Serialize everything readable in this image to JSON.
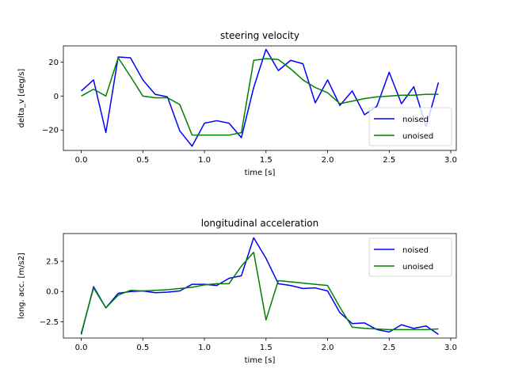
{
  "chart_data": [
    {
      "type": "line",
      "title": "steering velocity",
      "xlabel": "time [s]",
      "ylabel": "delta_v [deg/s]",
      "xlim": [
        -0.145,
        3.045
      ],
      "ylim": [
        -32.0,
        29.5
      ],
      "xticks": [
        0.0,
        0.5,
        1.0,
        1.5,
        2.0,
        2.5,
        3.0
      ],
      "xtick_labels": [
        "0.0",
        "0.5",
        "1.0",
        "1.5",
        "2.0",
        "2.5",
        "3.0"
      ],
      "yticks": [
        -20,
        0,
        20
      ],
      "ytick_labels": [
        "−20",
        "0",
        "20"
      ],
      "grid": false,
      "legend_position": "lower-right",
      "x": [
        0.0,
        0.1,
        0.2,
        0.3,
        0.4,
        0.5,
        0.6,
        0.7,
        0.8,
        0.9,
        1.0,
        1.1,
        1.2,
        1.3,
        1.4,
        1.5,
        1.6,
        1.7,
        1.8,
        1.9,
        2.0,
        2.1,
        2.2,
        2.3,
        2.4,
        2.5,
        2.6,
        2.7,
        2.8,
        2.9
      ],
      "series": [
        {
          "name": "noised",
          "color": "#0000ff",
          "values": [
            3,
            9.5,
            -21.5,
            23,
            22.5,
            9.5,
            1,
            -0.5,
            -20.5,
            -29.5,
            -16,
            -14.5,
            -16,
            -24.5,
            5,
            27.5,
            15,
            21,
            19,
            -4,
            9.5,
            -5.5,
            3,
            -11,
            -6,
            14,
            -4.5,
            5.5,
            -18,
            8
          ]
        },
        {
          "name": "unoised",
          "color": "#008000",
          "values": [
            0,
            4,
            0,
            22.5,
            11.5,
            0,
            -1,
            -1,
            -5,
            -23,
            -23,
            -23,
            -23,
            -21.5,
            21,
            22,
            21.5,
            16,
            9.5,
            5,
            2,
            -4.5,
            -3,
            -1.5,
            -0.5,
            0,
            0.5,
            0.5,
            1,
            1
          ]
        }
      ]
    },
    {
      "type": "line",
      "title": "longitudinal acceleration",
      "xlabel": "time [s]",
      "ylabel": "long. acc. [m/s2]",
      "xlim": [
        -0.145,
        3.045
      ],
      "ylim": [
        -3.85,
        4.8
      ],
      "xticks": [
        0.0,
        0.5,
        1.0,
        1.5,
        2.0,
        2.5,
        3.0
      ],
      "xtick_labels": [
        "0.0",
        "0.5",
        "1.0",
        "1.5",
        "2.0",
        "2.5",
        "3.0"
      ],
      "yticks": [
        -2.5,
        0.0,
        2.5
      ],
      "ytick_labels": [
        "−2.5",
        "0.0",
        "2.5"
      ],
      "grid": false,
      "legend_position": "upper-right",
      "x": [
        0.0,
        0.1,
        0.2,
        0.3,
        0.4,
        0.5,
        0.6,
        0.7,
        0.8,
        0.9,
        1.0,
        1.1,
        1.2,
        1.3,
        1.4,
        1.5,
        1.6,
        1.7,
        1.8,
        1.9,
        2.0,
        2.1,
        2.2,
        2.3,
        2.4,
        2.5,
        2.6,
        2.7,
        2.8,
        2.9
      ],
      "series": [
        {
          "name": "noised",
          "color": "#0000ff",
          "values": [
            -3.55,
            0.4,
            -1.35,
            -0.15,
            0.0,
            0.05,
            -0.1,
            -0.05,
            0.05,
            0.6,
            0.6,
            0.5,
            1.1,
            1.3,
            4.45,
            2.75,
            0.65,
            0.5,
            0.25,
            0.3,
            0.05,
            -1.75,
            -2.65,
            -2.6,
            -3.15,
            -3.35,
            -2.75,
            -3.05,
            -2.85,
            -3.55
          ]
        },
        {
          "name": "unoised",
          "color": "#008000",
          "values": [
            -3.45,
            0.3,
            -1.35,
            -0.3,
            0.1,
            0.05,
            0.1,
            0.15,
            0.25,
            0.35,
            0.55,
            0.65,
            0.65,
            2.1,
            3.25,
            -2.35,
            0.9,
            0.8,
            0.7,
            0.6,
            0.5,
            -1.3,
            -2.95,
            -3.05,
            -3.1,
            -3.15,
            -3.15,
            -3.15,
            -3.15,
            -3.1
          ]
        }
      ]
    }
  ]
}
